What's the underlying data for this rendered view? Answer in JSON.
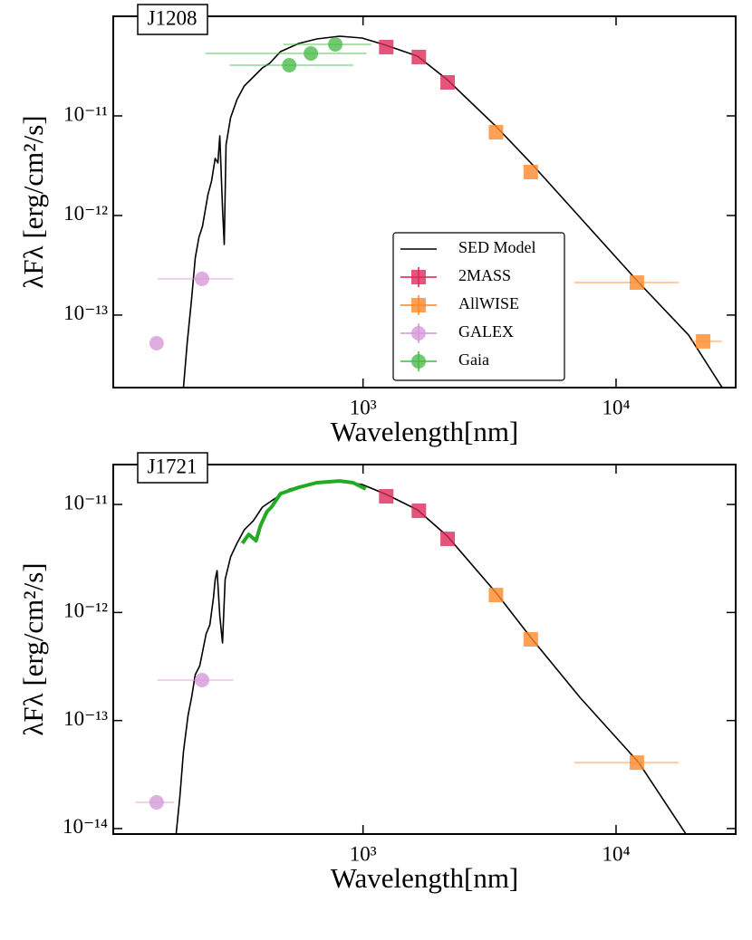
{
  "chart_data": [
    {
      "type": "scatter",
      "title": "J1208",
      "xlabel": "Wavelength[nm]",
      "ylabel": "λFλ [erg/cm²/s]",
      "xscale": "log",
      "yscale": "log",
      "xlim": [
        103,
        29700
      ],
      "ylim": [
        1.87e-14,
        1e-10
      ],
      "xticks": [
        {
          "value": 1000,
          "label": "10³"
        },
        {
          "value": 10000,
          "label": "10⁴"
        }
      ],
      "yticks": [
        {
          "value": 1e-11,
          "label": "10⁻¹¹"
        },
        {
          "value": 1e-12,
          "label": "10⁻¹²"
        },
        {
          "value": 1e-13,
          "label": "10⁻¹³"
        }
      ],
      "legend": "lower center",
      "series": [
        {
          "name": "SED Model",
          "color": "#000000",
          "style": "line",
          "x": [
            195.1,
            201.7,
            210.2,
            217.3,
            224.6,
            232.1,
            243.8,
            252.0,
            260.5,
            267.0,
            271.5,
            278.3,
            282.9,
            287.6,
            299.7,
            317.6,
            339.2,
            368.5,
            400.2,
            427.4,
            471.9,
            556.7,
            656.5,
            806.8,
            991.7,
            1234,
            1641,
            2153,
            3365,
            4604,
            7190,
            12290,
            19350,
            26270
          ],
          "values": [
            1.87e-14,
            5.12e-14,
            1.46e-13,
            3.74e-13,
            6.05e-13,
            7.78e-13,
            1.62e-12,
            2.22e-12,
            3.74e-12,
            3.37e-12,
            6.31e-12,
            1.18e-12,
            5.12e-13,
            5.12e-12,
            9.59e-12,
            1.46e-11,
            2e-11,
            2.46e-11,
            3.03e-11,
            3.37e-11,
            4.42e-11,
            5.34e-11,
            5.92e-11,
            6.31e-11,
            6.05e-11,
            5.12e-11,
            3.98e-11,
            2.31e-11,
            7.78e-12,
            3.37e-12,
            9.59e-13,
            2.12e-13,
            6.31e-14,
            1.87e-14
          ]
        },
        {
          "name": "2MASS",
          "color": "#dc2a5a",
          "style": "marker",
          "marker": "square",
          "x": [
            1235,
            1662,
            2159
          ],
          "values": [
            4.91e-11,
            3.9e-11,
            2.17e-11
          ]
        },
        {
          "name": "AllWISE",
          "color": "#ff8a2a",
          "style": "marker",
          "marker": "square",
          "x": [
            3353,
            4603,
            12082,
            22088
          ],
          "values": [
            6.86e-12,
            2.73e-12,
            2.12e-13,
            5.45e-14
          ],
          "xmin": [
            null,
            null,
            6840,
            19680
          ],
          "xmax": [
            null,
            null,
            17660,
            26240
          ]
        },
        {
          "name": "GALEX",
          "color": "#d69ad8",
          "style": "marker",
          "marker": "circle",
          "x": [
            152.8,
            231
          ],
          "values": [
            5.22e-14,
            2.31e-13
          ],
          "xmin": [
            null,
            154
          ],
          "xmax": [
            null,
            307
          ]
        },
        {
          "name": "Gaia",
          "color": "#4cbb4c",
          "style": "marker",
          "marker": "circle",
          "x": [
            511,
            622,
            777
          ],
          "values": [
            3.23e-11,
            4.24e-11,
            5.23e-11
          ],
          "xmin": [
            297,
            238,
            484
          ],
          "xmax": [
            914,
            1033,
            1077
          ]
        }
      ]
    },
    {
      "type": "scatter",
      "title": "J1721",
      "xlabel": "Wavelength[nm]",
      "ylabel": "λFλ [erg/cm²/s]",
      "xscale": "log",
      "yscale": "log",
      "xlim": [
        103,
        29700
      ],
      "ylim": [
        8.9e-15,
        2.34e-11
      ],
      "xticks": [
        {
          "value": 1000,
          "label": "10³"
        },
        {
          "value": 10000,
          "label": "10⁴"
        }
      ],
      "yticks": [
        {
          "value": 1e-11,
          "label": "10⁻¹¹"
        },
        {
          "value": 1e-12,
          "label": "10⁻¹²"
        },
        {
          "value": 1e-13,
          "label": "10⁻¹³"
        },
        {
          "value": 1e-14,
          "label": "10⁻¹⁴"
        }
      ],
      "series": [
        {
          "color": "#000000",
          "style": "line",
          "x": [
            182.6,
            188.8,
            195.1,
            203.3,
            210.2,
            217.3,
            226.4,
            239.9,
            248.0,
            256.3,
            260.5,
            264.9,
            271.5,
            278.3,
            285.2,
            299.7,
            317.6,
            339.2,
            368.5,
            400.2,
            434.5,
            512.6,
            656.5,
            806.8,
            991.7,
            1234,
            1641,
            2153,
            3365,
            4604,
            7190,
            12290,
            18880
          ],
          "values": [
            8.9e-15,
            1.96e-14,
            5.15e-14,
            1.11e-13,
            1.64e-13,
            2.66e-13,
            3.22e-13,
            6.33e-13,
            7.67e-13,
            1.37e-12,
            2.02e-12,
            2.44e-12,
            9.31e-13,
            5.22e-13,
            2.02e-12,
            3.27e-12,
            4.37e-12,
            5.82e-12,
            7.06e-12,
            9.44e-12,
            1.08e-11,
            1.39e-11,
            1.59e-11,
            1.65e-11,
            1.53e-11,
            1.24e-11,
            8.91e-12,
            5.09e-12,
            1.51e-12,
            5.86e-13,
            1.64e-13,
            4.08e-14,
            8.9e-15
          ]
        },
        {
          "color": "#22aa22",
          "style": "thickline",
          "x": [
            333.6,
            353.5,
            377.6,
            393.6,
            417.0,
            434.5,
            471.9,
            556.7,
            656.5,
            806.8,
            913.1,
            1025
          ],
          "values": [
            4.37e-12,
            5.28e-12,
            4.62e-12,
            6.41e-12,
            8.57e-12,
            9.44e-12,
            1.26e-11,
            1.44e-11,
            1.59e-11,
            1.65e-11,
            1.59e-11,
            1.39e-11
          ]
        },
        {
          "color": "#dc2a5a",
          "style": "marker",
          "marker": "square",
          "x": [
            1235,
            1662,
            2159
          ],
          "values": [
            1.19e-11,
            8.74e-12,
            4.8e-12
          ]
        },
        {
          "color": "#ff8a2a",
          "style": "marker",
          "marker": "square",
          "x": [
            3353,
            4603,
            12082
          ],
          "values": [
            1.45e-12,
            5.64e-13,
            4.08e-14
          ],
          "xmin": [
            null,
            null,
            6840
          ],
          "xmax": [
            null,
            null,
            17660
          ]
        },
        {
          "color": "#d69ad8",
          "style": "marker",
          "marker": "circle",
          "x": [
            152.8,
            231
          ],
          "values": [
            1.75e-14,
            2.37e-13
          ],
          "xmin": [
            126,
            154
          ],
          "xmax": [
            179,
            307
          ]
        }
      ]
    }
  ]
}
